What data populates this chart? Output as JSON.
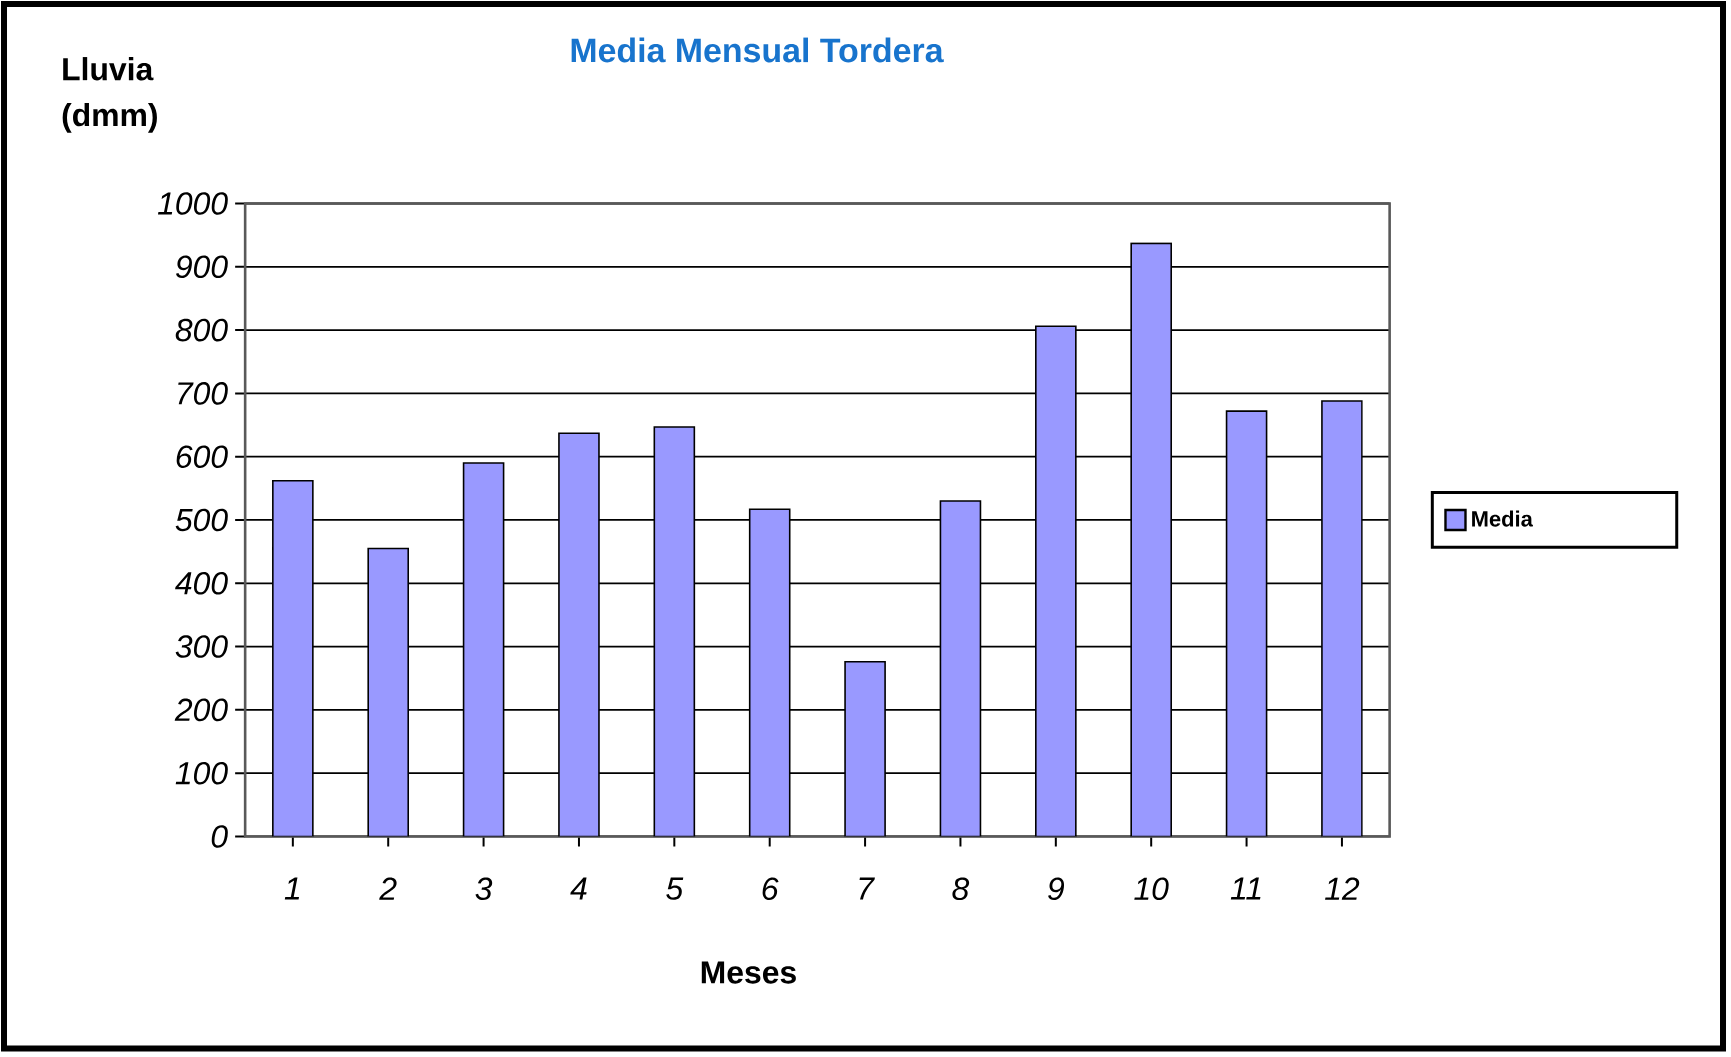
{
  "chart_data": {
    "type": "bar",
    "title": "Media Mensual Tordera",
    "xlabel": "Meses",
    "ylabel": "Lluvia (dmm)",
    "categories": [
      "1",
      "2",
      "3",
      "4",
      "5",
      "6",
      "7",
      "8",
      "9",
      "10",
      "11",
      "12"
    ],
    "series": [
      {
        "name": "Media",
        "color": "#9999ff",
        "values": [
          562,
          455,
          590,
          637,
          647,
          517,
          276,
          530,
          806,
          937,
          672,
          688
        ]
      }
    ],
    "ylim": [
      0,
      1000
    ],
    "yticks": [
      0,
      100,
      200,
      300,
      400,
      500,
      600,
      700,
      800,
      900,
      1000
    ],
    "grid": "y",
    "legend": "right"
  }
}
